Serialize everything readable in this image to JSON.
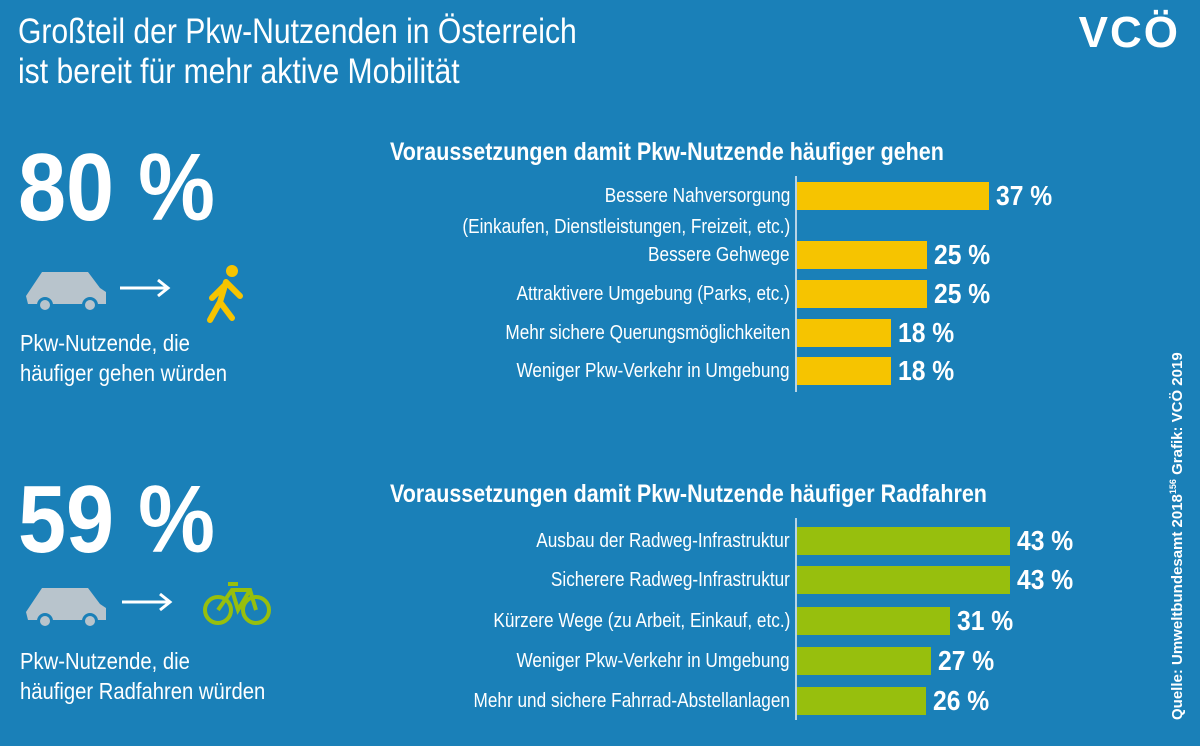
{
  "header": {
    "title": "Großteil der Pkw-Nutzenden in Österreich\nist bereit für mehr aktive Mobilität",
    "logo": "VCÖ"
  },
  "stats": [
    {
      "value": "80 %",
      "caption": "Pkw-Nutzende, die\nhäufiger gehen würden"
    },
    {
      "value": "59 %",
      "caption": "Pkw-Nutzende, die\nhäufiger Radfahren würden"
    }
  ],
  "source": {
    "text": "Quelle: Umweltbundesamt 2018",
    "ref": "156",
    "credit": "Grafik: VCÖ 2019"
  },
  "chart_data": [
    {
      "type": "bar",
      "orientation": "horizontal",
      "title": "Voraussetzungen damit Pkw-Nutzende häufiger gehen",
      "color": "#f6c400",
      "categories": [
        "Bessere Nahversorgung\n(Einkaufen, Dienstleistungen, Freizeit, etc.)",
        "Bessere Gehwege",
        "Attraktivere Umgebung (Parks, etc.)",
        "Mehr sichere Querungsmöglichkeiten",
        "Weniger Pkw-Verkehr in Umgebung"
      ],
      "values": [
        37,
        25,
        25,
        18,
        18
      ],
      "value_labels": [
        "37 %",
        "25 %",
        "25 %",
        "18 %",
        "18 %"
      ]
    },
    {
      "type": "bar",
      "orientation": "horizontal",
      "title": "Voraussetzungen damit Pkw-Nutzende häufiger Radfahren",
      "color": "#97bf0d",
      "categories": [
        "Ausbau der Radweg-Infrastruktur",
        "Sicherere Radweg-Infrastruktur",
        "Kürzere Wege (zu Arbeit, Einkauf, etc.)",
        "Weniger Pkw-Verkehr in Umgebung",
        "Mehr und sichere Fahrrad-Abstellanlagen"
      ],
      "values": [
        43,
        43,
        31,
        27,
        26
      ],
      "value_labels": [
        "43 %",
        "43 %",
        "31 %",
        "27 %",
        "26 %"
      ]
    }
  ]
}
